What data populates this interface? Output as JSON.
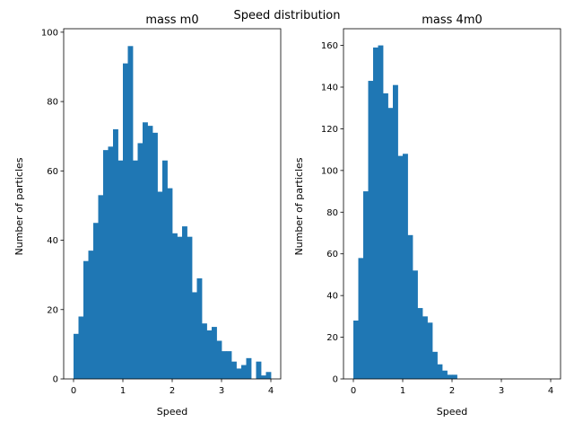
{
  "figure": {
    "suptitle": "Speed distribution"
  },
  "chart_data": [
    {
      "type": "bar",
      "title": "mass m0",
      "xlabel": "Speed",
      "ylabel": "Number of particles",
      "xlim": [
        -0.2,
        4.2
      ],
      "ylim": [
        0,
        101
      ],
      "xticks": [
        0,
        1,
        2,
        3,
        4
      ],
      "yticks": [
        0,
        20,
        40,
        60,
        80,
        100
      ],
      "bin_width": 0.1,
      "bin_start": 0,
      "color": "#1f77b4",
      "values": [
        13,
        18,
        34,
        37,
        45,
        53,
        66,
        67,
        72,
        63,
        91,
        96,
        63,
        68,
        74,
        73,
        71,
        54,
        63,
        55,
        42,
        41,
        44,
        41,
        25,
        29,
        16,
        14,
        15,
        11,
        8,
        8,
        5,
        3,
        4,
        6,
        0,
        5,
        1,
        2
      ]
    },
    {
      "type": "bar",
      "title": "mass 4m0",
      "xlabel": "Speed",
      "ylabel": "Number of particles",
      "xlim": [
        -0.2,
        4.2
      ],
      "ylim": [
        0,
        168
      ],
      "xticks": [
        0,
        1,
        2,
        3,
        4
      ],
      "yticks": [
        0,
        20,
        40,
        60,
        80,
        100,
        120,
        140,
        160
      ],
      "bin_width": 0.1,
      "bin_start": 0,
      "color": "#1f77b4",
      "values": [
        28,
        58,
        90,
        143,
        159,
        160,
        137,
        130,
        141,
        107,
        108,
        69,
        52,
        34,
        30,
        27,
        13,
        7,
        4,
        2,
        2,
        0,
        0,
        0,
        0,
        0,
        0,
        0,
        0,
        0,
        0,
        0,
        0,
        0,
        0,
        0,
        0,
        0,
        0,
        0
      ]
    }
  ]
}
